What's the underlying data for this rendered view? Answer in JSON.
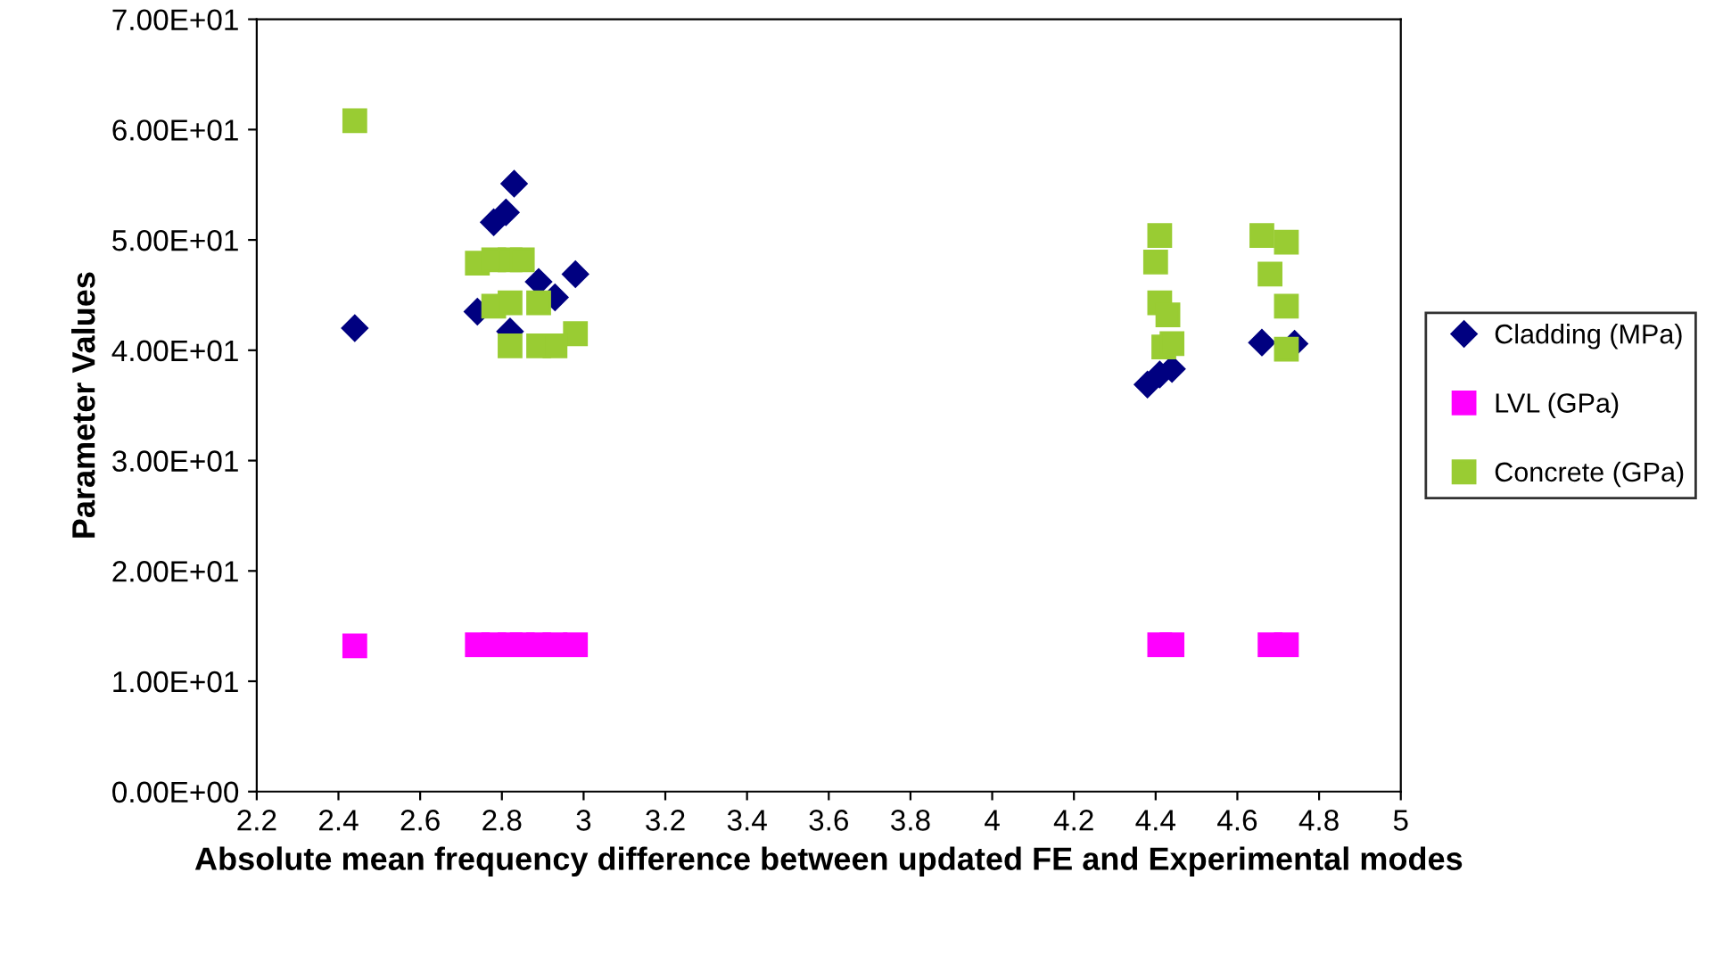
{
  "chart_data": {
    "type": "scatter",
    "xlabel": "Absolute mean frequency difference between updated FE and Experimental modes",
    "ylabel": "Parameter Values",
    "xlim": [
      2.2,
      5
    ],
    "xticks": [
      2.2,
      2.4,
      2.6,
      2.8,
      3,
      3.2,
      3.4,
      3.6,
      3.8,
      4,
      4.2,
      4.4,
      4.6,
      4.8,
      5
    ],
    "ylim": [
      0,
      70
    ],
    "yticks": [
      {
        "value": 0,
        "label": "0.00E+00"
      },
      {
        "value": 10,
        "label": "1.00E+01"
      },
      {
        "value": 20,
        "label": "2.00E+01"
      },
      {
        "value": 30,
        "label": "3.00E+01"
      },
      {
        "value": 40,
        "label": "4.00E+01"
      },
      {
        "value": 50,
        "label": "5.00E+01"
      },
      {
        "value": 60,
        "label": "6.00E+01"
      },
      {
        "value": 70,
        "label": "7.00E+01"
      }
    ],
    "grid": false,
    "legend": "right",
    "series": [
      {
        "name": "Cladding (MPa)",
        "color": "#000080",
        "marker": "diamond",
        "x": [
          2.44,
          2.83,
          2.81,
          2.78,
          2.98,
          2.89,
          2.93,
          2.74,
          2.82,
          4.38,
          4.41,
          4.44,
          4.66,
          4.74
        ],
        "values": [
          42.0,
          55.1,
          52.5,
          51.6,
          46.9,
          46.2,
          44.8,
          43.5,
          41.7,
          36.9,
          37.8,
          38.3,
          40.7,
          40.6
        ]
      },
      {
        "name": "LVL (GPa)",
        "color": "#ff00ff",
        "marker": "square",
        "x": [
          2.44,
          2.74,
          2.78,
          2.82,
          2.85,
          2.89,
          2.93,
          2.98,
          4.41,
          4.44,
          4.68,
          4.72
        ],
        "values": [
          13.2,
          13.3,
          13.3,
          13.3,
          13.3,
          13.3,
          13.3,
          13.3,
          13.3,
          13.3,
          13.3,
          13.3
        ]
      },
      {
        "name": "Concrete (GPa)",
        "color": "#99cc33",
        "marker": "square",
        "x": [
          2.44,
          2.74,
          2.78,
          2.82,
          2.85,
          2.78,
          2.82,
          2.89,
          2.98,
          2.82,
          2.89,
          2.93,
          4.41,
          4.4,
          4.41,
          4.43,
          4.42,
          4.44,
          4.66,
          4.72,
          4.68,
          4.72,
          4.72
        ],
        "values": [
          60.8,
          47.9,
          48.2,
          48.2,
          48.2,
          44.0,
          44.3,
          44.3,
          41.5,
          40.4,
          40.4,
          40.4,
          50.4,
          48.0,
          44.3,
          43.2,
          40.3,
          40.6,
          50.4,
          49.8,
          46.9,
          44.0,
          40.1
        ]
      }
    ]
  }
}
